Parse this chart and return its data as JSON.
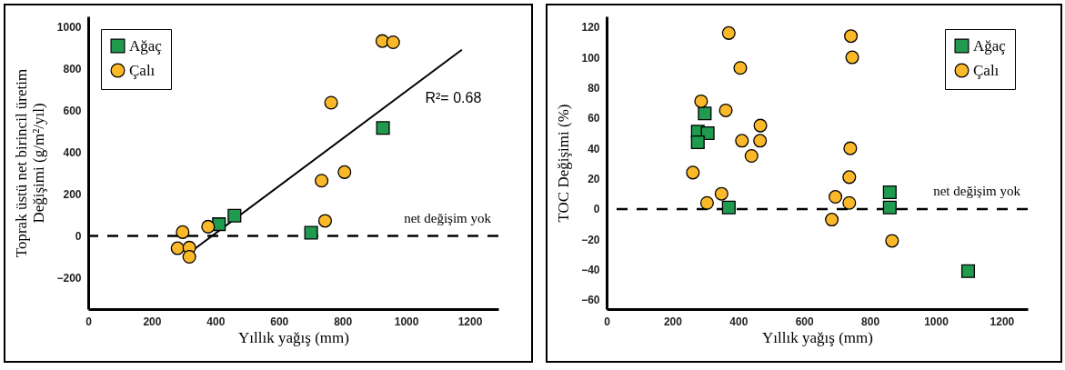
{
  "chart_data": [
    {
      "type": "scatter",
      "xlabel": "Yıllık yağış (mm)",
      "ylabel": "Toprak üstü net birincil üretim\nDeğişimi (g/m²/yıl)",
      "xlim": [
        0,
        1290
      ],
      "xticks": [
        0,
        200,
        400,
        600,
        800,
        1000,
        1200
      ],
      "ylim": [
        -350,
        1050
      ],
      "yticks": [
        -200,
        0,
        200,
        400,
        600,
        800,
        1000
      ],
      "grid": false,
      "legend": "top left",
      "series": [
        {
          "name": "Ağaç",
          "marker": "square",
          "color": "#1f9a4f",
          "x": [
            411,
            460,
            701,
            927
          ],
          "values": [
            56,
            97,
            15,
            516
          ]
        },
        {
          "name": "Çalı",
          "marker": "circle",
          "color": "#fbb829",
          "x": [
            297,
            281,
            318,
            318,
            377,
            734,
            745,
            806,
            764,
            925,
            959
          ],
          "values": [
            18,
            -59,
            -56,
            -100,
            44,
            264,
            72,
            305,
            637,
            932,
            926
          ]
        },
        {
          "type": "line",
          "color": "#000000",
          "x": [
            304,
            1175
          ],
          "values": [
            -97,
            890
          ]
        }
      ],
      "ref_lines": [
        {
          "axis": "y",
          "value": 0,
          "label": "net değişim yok",
          "line_style": "dashed"
        }
      ],
      "annotations": [
        "R²= 0.68"
      ]
    },
    {
      "type": "scatter",
      "xlabel": "Yıllık yağış (mm)",
      "ylabel": "TOC Değişimi (%)",
      "xlim": [
        0,
        1279
      ],
      "xticks": [
        0,
        200,
        400,
        600,
        800,
        1000,
        1200
      ],
      "ylim": [
        -66,
        127
      ],
      "yticks": [
        -60,
        -40,
        -20,
        0,
        20,
        40,
        60,
        80,
        100,
        120
      ],
      "grid": false,
      "legend": "top right",
      "series": [
        {
          "name": "Ağaç",
          "marker": "square",
          "color": "#1f9a4f",
          "x": [
            298,
            277,
            307,
            277,
            371,
            860,
            860,
            1098
          ],
          "values": [
            63,
            51,
            50,
            44,
            1,
            11,
            1,
            -41
          ]
        },
        {
          "name": "Çalı",
          "marker": "circle",
          "color": "#fbb829",
          "x": [
            371,
            406,
            287,
            362,
            467,
            411,
            466,
            440,
            262,
            349,
            305,
            742,
            746,
            740,
            737,
            695,
            737,
            684,
            867
          ],
          "values": [
            116,
            93,
            71,
            65,
            55,
            45,
            45,
            35,
            24,
            10,
            4,
            114,
            100,
            40,
            21,
            8,
            4,
            -7,
            -21
          ]
        }
      ],
      "ref_lines": [
        {
          "axis": "y",
          "value": 0,
          "label": "net değişim yok",
          "line_style": "dashed"
        }
      ]
    }
  ]
}
